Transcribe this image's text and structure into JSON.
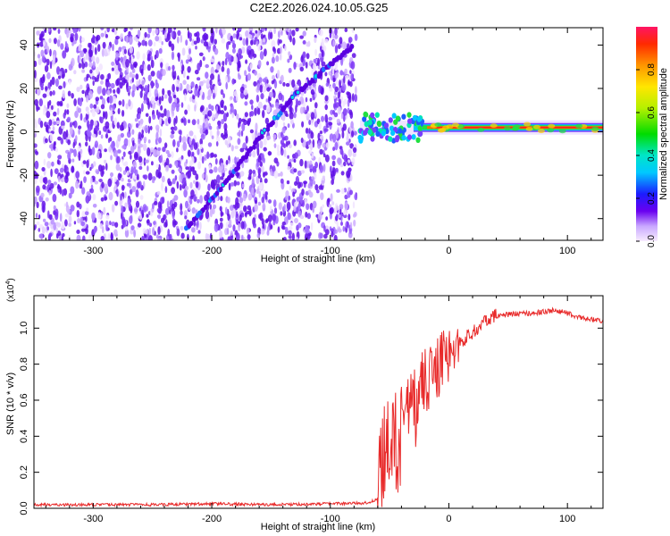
{
  "title": "C2E2.2026.024.10.05.G25",
  "colors": {
    "snr_line": "#e82a2a",
    "track_dots": "#5a00e0",
    "background": "#ffffff"
  },
  "chart_data": [
    {
      "type": "heatmap",
      "name": "spectrogram",
      "xlabel": "Height of straight line (km)",
      "ylabel": "Frequency (Hz)",
      "xlim": [
        -350,
        130
      ],
      "ylim": [
        -50,
        48
      ],
      "xticks": [
        -300,
        -200,
        -100,
        0,
        100
      ],
      "yticks": [
        -40,
        -20,
        0,
        20,
        40
      ],
      "noise_region_x": [
        -350,
        -78
      ],
      "ridge": [
        [
          -222,
          -45
        ],
        [
          -190,
          -25
        ],
        [
          -160,
          -3
        ],
        [
          -130,
          17
        ],
        [
          -80,
          40
        ]
      ],
      "signal_band": {
        "x": [
          -75,
          130
        ],
        "frequency_hz": 2
      },
      "colorbar": {
        "label": "Normalized spectral amplitude",
        "range": [
          0.0,
          1.0
        ],
        "ticks": [
          0.0,
          0.2,
          0.4,
          0.6,
          0.8
        ]
      }
    },
    {
      "type": "line",
      "name": "snr",
      "xlabel": "Height of straight line (km)",
      "ylabel": "SNR (10 * v/v)",
      "multiplier_label": "(x10",
      "multiplier_exponent": "4",
      "xlim": [
        -350,
        130
      ],
      "ylim": [
        0,
        1.18
      ],
      "xticks": [
        -300,
        -200,
        -100,
        0,
        100
      ],
      "yticks": [
        0.0,
        0.2,
        0.4,
        0.6,
        0.8,
        1.0
      ],
      "series": [
        {
          "name": "SNR",
          "x": [
            -350,
            -300,
            -250,
            -200,
            -150,
            -100,
            -70,
            -60,
            -58,
            -50,
            -40,
            -30,
            -20,
            -10,
            0,
            10,
            20,
            30,
            40,
            60,
            80,
            90,
            100,
            110,
            120,
            130
          ],
          "y": [
            0.02,
            0.02,
            0.02,
            0.025,
            0.02,
            0.025,
            0.03,
            0.05,
            0.2,
            0.3,
            0.4,
            0.55,
            0.7,
            0.78,
            0.85,
            0.92,
            0.98,
            1.03,
            1.07,
            1.08,
            1.09,
            1.1,
            1.08,
            1.06,
            1.05,
            1.04
          ]
        }
      ]
    }
  ]
}
